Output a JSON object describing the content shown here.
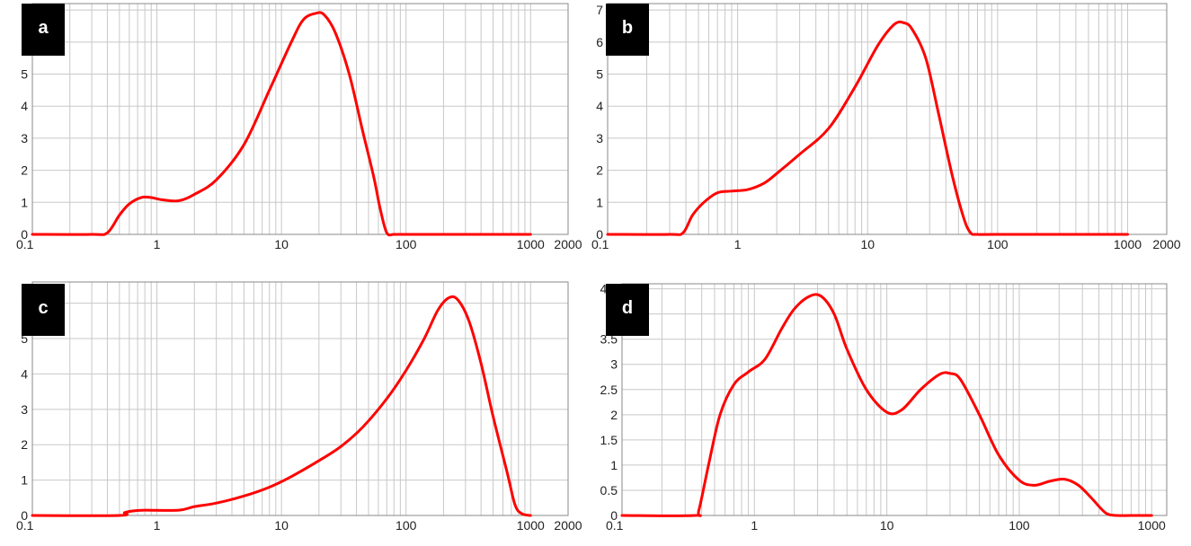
{
  "colors": {
    "curve": "#ff0000",
    "grid": "#c8c8c8",
    "frame": "#888888",
    "badge_bg": "#000000",
    "badge_text": "#ffffff"
  },
  "chart_data": [
    {
      "type": "line",
      "panel_label": "a",
      "x_scale": "log",
      "xlim": [
        0.1,
        2000
      ],
      "ylim": [
        0,
        7.2
      ],
      "x_ticks": [
        0.1,
        1,
        10,
        100,
        1000,
        2000
      ],
      "x_tick_labels": [
        "0.1",
        "1",
        "10",
        "100",
        "1000",
        "2000"
      ],
      "y_ticks": [
        0,
        1,
        2,
        3,
        4,
        5,
        6,
        7
      ],
      "y_tick_labels": [
        "0",
        "1",
        "2",
        "3",
        "4",
        "5",
        "6",
        "7"
      ],
      "grid": true,
      "series": [
        {
          "x": [
            0.1,
            0.3,
            0.4,
            0.5,
            0.6,
            0.75,
            0.9,
            1.1,
            1.5,
            2,
            3,
            5,
            8,
            12,
            15,
            19,
            22,
            27,
            35,
            45,
            55,
            62,
            70,
            80,
            100,
            1000
          ],
          "y": [
            0,
            0,
            0.05,
            0.6,
            0.95,
            1.15,
            1.15,
            1.08,
            1.05,
            1.25,
            1.7,
            2.8,
            4.5,
            6.0,
            6.7,
            6.9,
            6.85,
            6.3,
            5.0,
            3.2,
            1.8,
            0.8,
            0.05,
            0,
            0,
            0
          ]
        }
      ]
    },
    {
      "type": "line",
      "panel_label": "b",
      "x_scale": "log",
      "xlim": [
        0.1,
        2000
      ],
      "ylim": [
        0,
        7.2
      ],
      "x_ticks": [
        0.1,
        1,
        10,
        100,
        1000,
        2000
      ],
      "x_tick_labels": [
        "0.1",
        "1",
        "10",
        "100",
        "1000",
        "2000"
      ],
      "y_ticks": [
        0,
        1,
        2,
        3,
        4,
        5,
        6,
        7
      ],
      "y_tick_labels": [
        "0",
        "1",
        "2",
        "3",
        "4",
        "5",
        "6",
        "7"
      ],
      "grid": true,
      "series": [
        {
          "x": [
            0.1,
            0.3,
            0.38,
            0.45,
            0.55,
            0.7,
            0.9,
            1.2,
            1.6,
            2,
            3,
            5,
            8,
            12,
            16,
            19,
            22,
            28,
            35,
            45,
            55,
            62,
            70,
            100,
            1000
          ],
          "y": [
            0,
            0,
            0.05,
            0.6,
            1.0,
            1.3,
            1.35,
            1.4,
            1.6,
            1.9,
            2.5,
            3.3,
            4.6,
            5.9,
            6.55,
            6.6,
            6.4,
            5.5,
            3.8,
            1.8,
            0.5,
            0.05,
            0,
            0,
            0
          ]
        }
      ]
    },
    {
      "type": "line",
      "panel_label": "c",
      "x_scale": "log",
      "xlim": [
        0.1,
        2000
      ],
      "ylim": [
        0,
        6.6
      ],
      "x_ticks": [
        0.1,
        1,
        10,
        100,
        1000,
        2000
      ],
      "x_tick_labels": [
        "0.1",
        "1",
        "10",
        "100",
        "1000",
        "2000"
      ],
      "y_ticks": [
        0,
        1,
        2,
        3,
        4,
        5,
        6
      ],
      "y_tick_labels": [
        "0",
        "1",
        "2",
        "3",
        "4",
        "5",
        "6"
      ],
      "grid": true,
      "series": [
        {
          "x": [
            0.1,
            0.5,
            0.55,
            0.65,
            0.8,
            1.5,
            2,
            3,
            5,
            8,
            12,
            20,
            30,
            45,
            70,
            100,
            140,
            180,
            220,
            260,
            320,
            400,
            500,
            650,
            750,
            850,
            1000
          ],
          "y": [
            0,
            0,
            0.08,
            0.13,
            0.15,
            0.15,
            0.25,
            0.35,
            0.55,
            0.8,
            1.1,
            1.55,
            1.95,
            2.5,
            3.3,
            4.1,
            5.0,
            5.8,
            6.15,
            6.1,
            5.5,
            4.3,
            2.8,
            1.2,
            0.3,
            0.05,
            0
          ]
        }
      ]
    },
    {
      "type": "line",
      "panel_label": "d",
      "x_scale": "log",
      "xlim": [
        0.1,
        1300
      ],
      "ylim": [
        0,
        4.6
      ],
      "x_ticks": [
        0.1,
        1,
        10,
        100,
        1000
      ],
      "x_tick_labels": [
        "0.1",
        "1",
        "10",
        "100",
        "1000"
      ],
      "y_ticks": [
        0,
        0.5,
        1,
        1.5,
        2,
        2.5,
        3,
        3.5,
        4,
        4.5
      ],
      "y_tick_labels": [
        "0",
        "0.5",
        "1",
        "1.5",
        "2",
        "2.5",
        "3",
        "3.5",
        "4",
        "4.5"
      ],
      "grid": true,
      "series": [
        {
          "x": [
            0.1,
            0.35,
            0.38,
            0.45,
            0.55,
            0.7,
            0.9,
            1.2,
            1.6,
            2,
            2.6,
            3.2,
            4,
            5,
            7,
            10,
            13,
            18,
            25,
            30,
            36,
            50,
            70,
            100,
            130,
            170,
            220,
            280,
            350,
            450,
            550,
            700,
            1000
          ],
          "y": [
            0,
            0,
            0.1,
            1.0,
            2.0,
            2.6,
            2.85,
            3.1,
            3.7,
            4.1,
            4.35,
            4.35,
            4.0,
            3.3,
            2.5,
            2.05,
            2.1,
            2.5,
            2.8,
            2.82,
            2.7,
            2.0,
            1.2,
            0.7,
            0.6,
            0.68,
            0.72,
            0.6,
            0.35,
            0.05,
            0,
            0,
            0
          ]
        }
      ]
    }
  ]
}
